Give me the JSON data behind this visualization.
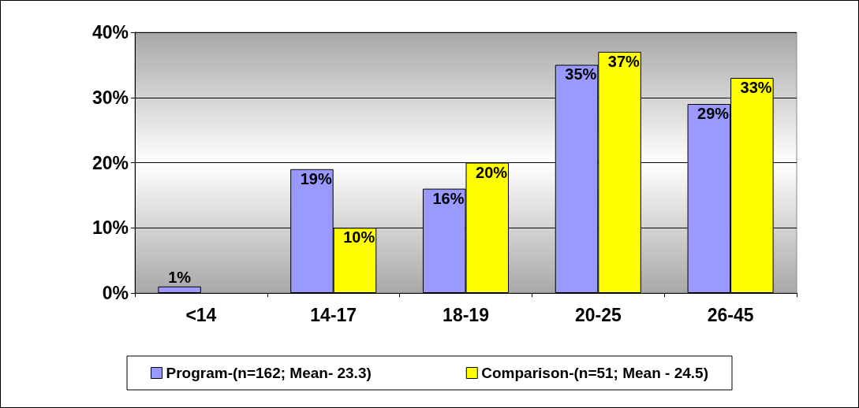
{
  "chart_data": {
    "type": "bar",
    "categories": [
      "<14",
      "14-17",
      "18-19",
      "20-25",
      "26-45"
    ],
    "series": [
      {
        "name": "Program-(n=162; Mean- 23.3)",
        "color": "#9999ff",
        "values": [
          1,
          19,
          16,
          35,
          29
        ],
        "value_labels": [
          "1%",
          "19%",
          "16%",
          "35%",
          "29%"
        ]
      },
      {
        "name": "Comparison-(n=51; Mean - 24.5)",
        "color": "#ffff00",
        "values": [
          null,
          10,
          20,
          37,
          33
        ],
        "value_labels": [
          null,
          "10%",
          "20%",
          "37%",
          "33%"
        ]
      }
    ],
    "ylim": [
      0,
      40
    ],
    "yticks": [
      {
        "value": 0,
        "label": "0%"
      },
      {
        "value": 10,
        "label": "10%"
      },
      {
        "value": 20,
        "label": "20%"
      },
      {
        "value": 30,
        "label": "30%"
      },
      {
        "value": 40,
        "label": "40%"
      }
    ],
    "grid": "y",
    "legend": "bottom"
  }
}
